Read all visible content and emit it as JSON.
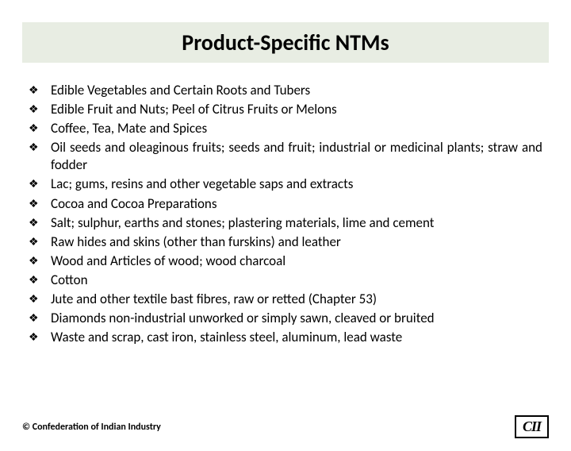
{
  "title": "Product-Specific NTMs",
  "title_bg_color": "#e8ede3",
  "title_fontsize": 28,
  "bullet_char": "❖",
  "items": [
    "Edible Vegetables and Certain Roots and Tubers",
    "Edible Fruit and Nuts; Peel of Citrus Fruits or Melons",
    "Coffee, Tea, Mate and Spices",
    "Oil seeds and oleaginous fruits; seeds and fruit; industrial or medicinal plants; straw and fodder",
    "Lac; gums, resins and other vegetable saps and extracts",
    "Cocoa and Cocoa Preparations",
    "Salt; sulphur, earths and stones; plastering materials, lime and cement",
    "Raw hides and skins (other than furskins) and leather",
    "Wood and Articles of wood; wood charcoal",
    "Cotton",
    "Jute and other textile bast fibres, raw or retted (Chapter 53)",
    "Diamonds non-industrial unworked or simply sawn, cleaved or bruited",
    "Waste and scrap, cast iron, stainless steel, aluminum, lead waste"
  ],
  "item_fontsize": 17,
  "copyright": "© Confederation of Indian Industry",
  "logo_text": "CII",
  "background_color": "#ffffff"
}
